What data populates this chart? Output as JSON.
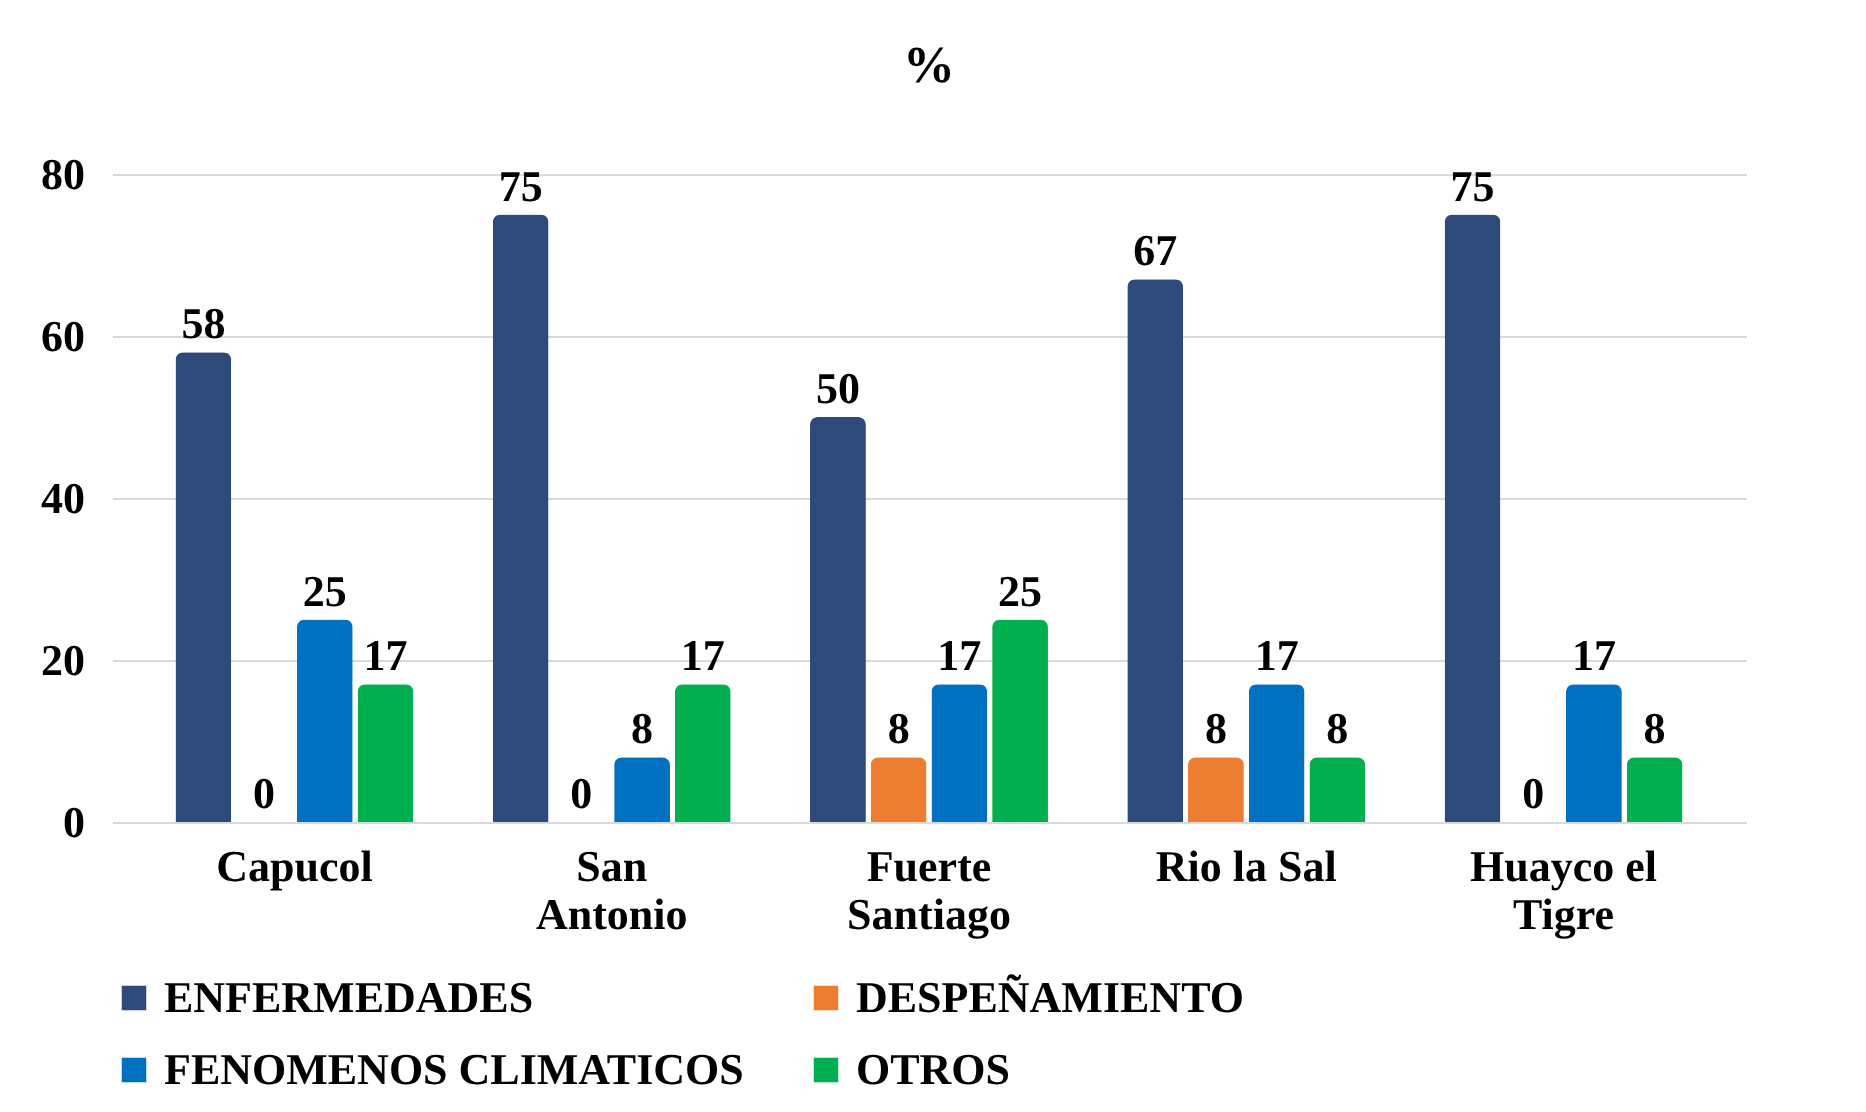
{
  "chart_data": {
    "type": "bar",
    "title": "%",
    "categories": [
      "Capucol",
      "San Antonio",
      "Fuerte Santiago",
      "Rio la Sal",
      "Huayco el Tigre"
    ],
    "series": [
      {
        "name": "ENFERMEDADES",
        "color": "#2e4a7a",
        "values": [
          58,
          75,
          50,
          67,
          75
        ]
      },
      {
        "name": "DESPEÑAMIENTO",
        "color": "#ed7d31",
        "values": [
          0,
          0,
          8,
          8,
          0
        ]
      },
      {
        "name": "FENOMENOS CLIMATICOS",
        "color": "#0070c0",
        "values": [
          25,
          8,
          17,
          17,
          17
        ]
      },
      {
        "name": "OTROS",
        "color": "#00b050",
        "values": [
          17,
          17,
          25,
          8,
          8
        ]
      }
    ],
    "ylim": [
      0,
      80
    ],
    "yticks": [
      0,
      20,
      40,
      60,
      80
    ],
    "grid": "y",
    "legend": "bottom",
    "data_labels": true
  }
}
